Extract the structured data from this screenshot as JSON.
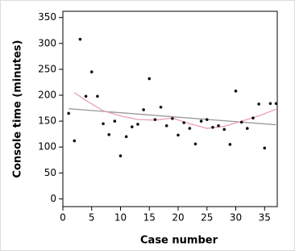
{
  "chart_data": {
    "type": "scatter",
    "xlabel": "Case number",
    "ylabel": "Console time (minutes)",
    "xlim": [
      0,
      37.2
    ],
    "ylim": [
      -15,
      362
    ],
    "xticks": [
      0,
      5,
      10,
      15,
      20,
      25,
      30,
      35
    ],
    "yticks": [
      0,
      50,
      100,
      150,
      200,
      250,
      300,
      350
    ],
    "series": [
      {
        "type": "scatter",
        "color": "#111111",
        "x": [
          1,
          2,
          3,
          4,
          5,
          6,
          7,
          8,
          9,
          10,
          11,
          12,
          13,
          14,
          15,
          16,
          17,
          18,
          19,
          20,
          21,
          22,
          23,
          24,
          25,
          26,
          27,
          28,
          29,
          30,
          31,
          32,
          33,
          34,
          35,
          36,
          37
        ],
        "values": [
          165,
          112,
          308,
          198,
          245,
          198,
          145,
          124,
          150,
          83,
          120,
          139,
          144,
          172,
          232,
          153,
          177,
          141,
          155,
          123,
          147,
          136,
          106,
          150,
          153,
          138,
          141,
          134,
          105,
          208,
          148,
          136,
          156,
          183,
          98,
          184,
          184
        ]
      },
      {
        "type": "line",
        "color": "#999999",
        "x": [
          1,
          37
        ],
        "values": [
          174,
          143
        ]
      },
      {
        "type": "line",
        "color": "#e8a0b0",
        "x": [
          2,
          4,
          7,
          10,
          13,
          16,
          19,
          22,
          25,
          28,
          31,
          34,
          37
        ],
        "values": [
          205,
          190,
          170,
          160,
          153,
          152,
          156,
          145,
          136,
          140,
          150,
          160,
          173
        ]
      }
    ]
  }
}
